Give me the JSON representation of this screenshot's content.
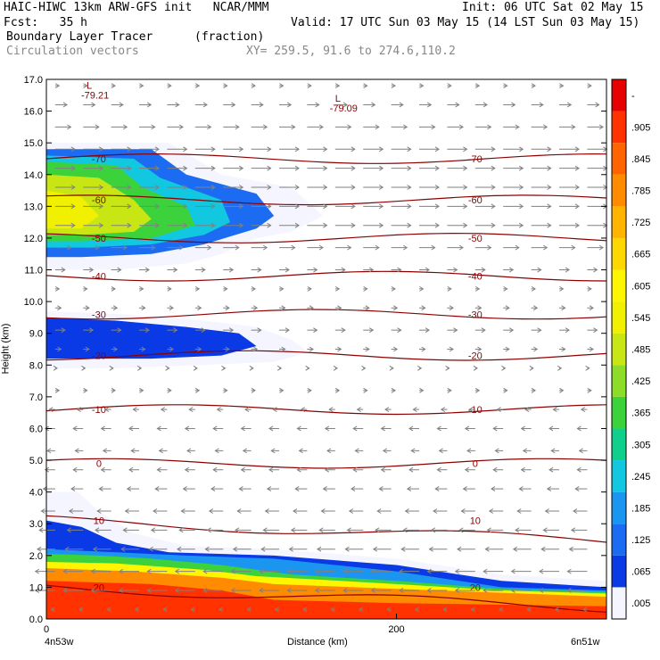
{
  "header": {
    "line1_left": "HAIC-HIWC 13km ARW-GFS init   NCAR/MMM",
    "line1_right": "Init: 06 UTC Sat 02 May 15",
    "line2_left": "Fcst:   35 h",
    "line2_right": "Valid: 17 UTC Sun 03 May 15 (14 LST Sun 03 May 15)",
    "line3_field": "Boundary Layer Tracer",
    "line3_units": "(fraction)",
    "line4_field": "Circulation vectors",
    "line4_xy": "XY= 259.5, 91.6 to 274.6,110.2"
  },
  "chart_data": {
    "type": "heatmap",
    "title": "Boundary Layer Tracer",
    "units": "(fraction)",
    "ylabel": "Height (km)",
    "xlabel": "Distance (km)",
    "xlim": [
      0,
      320
    ],
    "ylim": [
      0,
      17
    ],
    "x_ticks": [
      "0",
      "200"
    ],
    "x_end_labels": [
      "4n53w",
      "6n51w"
    ],
    "y_ticks": [
      "0.0",
      "1.0",
      "2.0",
      "3.0",
      "4.0",
      "5.0",
      "6.0",
      "7.0",
      "8.0",
      "9.0",
      "10.0",
      "11.0",
      "12.0",
      "13.0",
      "14.0",
      "15.0",
      "16.0",
      "17.0"
    ],
    "colorbar": {
      "labels": [
        ".005",
        ".065",
        ".125",
        ".185",
        ".245",
        ".305",
        ".365",
        ".425",
        ".485",
        ".545",
        ".605",
        ".665",
        ".725",
        ".785",
        ".845",
        ".905",
        "-"
      ],
      "colors": [
        "#f5f5ff",
        "#0a39e6",
        "#1b6cf2",
        "#1a96f0",
        "#12c7e0",
        "#0ed08c",
        "#3cd23c",
        "#8cdc28",
        "#c8e614",
        "#f0f000",
        "#fff500",
        "#ffd700",
        "#ffb400",
        "#ff8c00",
        "#ff6400",
        "#ff3200",
        "#e60000"
      ]
    },
    "temperature_contours": {
      "color": "#8b0000",
      "levels": [
        {
          "label": "-70",
          "y": 14.5
        },
        {
          "label": "-60",
          "y": 13.2
        },
        {
          "label": "-50",
          "y": 12.0
        },
        {
          "label": "-40",
          "y": 10.8
        },
        {
          "label": "-30",
          "y": 9.6
        },
        {
          "label": "-20",
          "y": 8.3
        },
        {
          "label": "-10",
          "y": 6.6
        },
        {
          "label": "0",
          "y": 4.9
        },
        {
          "label": "10",
          "y": 3.1
        },
        {
          "label": "20",
          "y": 1.0
        }
      ]
    },
    "low_labels": [
      {
        "marker": "L",
        "value": "-79.21",
        "x": 26,
        "y": 16.7
      },
      {
        "marker": "L",
        "value": "-79.09",
        "x": 168,
        "y": 16.3
      }
    ],
    "tracer_regions": [
      {
        "name": "upper layer",
        "levels": [
          {
            "value": 0.005,
            "pts": [
              [
                0,
                15.0
              ],
              [
                70,
                15.0
              ],
              [
                100,
                14.0
              ],
              [
                140,
                13.6
              ],
              [
                158,
                12.7
              ],
              [
                140,
                12.2
              ],
              [
                120,
                12.0
              ],
              [
                100,
                11.5
              ],
              [
                80,
                11.2
              ],
              [
                40,
                11.0
              ],
              [
                0,
                11.0
              ]
            ]
          },
          {
            "value": 0.125,
            "pts": [
              [
                0,
                14.8
              ],
              [
                60,
                14.8
              ],
              [
                80,
                14.0
              ],
              [
                120,
                13.4
              ],
              [
                130,
                12.7
              ],
              [
                120,
                12.3
              ],
              [
                90,
                11.8
              ],
              [
                60,
                11.5
              ],
              [
                20,
                11.4
              ],
              [
                0,
                11.4
              ]
            ]
          },
          {
            "value": 0.245,
            "pts": [
              [
                0,
                14.6
              ],
              [
                50,
                14.5
              ],
              [
                65,
                13.9
              ],
              [
                100,
                13.2
              ],
              [
                105,
                12.5
              ],
              [
                90,
                12.1
              ],
              [
                60,
                11.8
              ],
              [
                20,
                11.7
              ],
              [
                0,
                11.7
              ]
            ]
          },
          {
            "value": 0.365,
            "pts": [
              [
                0,
                14.4
              ],
              [
                40,
                14.3
              ],
              [
                55,
                13.6
              ],
              [
                80,
                13.0
              ],
              [
                85,
                12.4
              ],
              [
                60,
                12.0
              ],
              [
                20,
                11.9
              ],
              [
                0,
                11.9
              ]
            ]
          },
          {
            "value": 0.485,
            "pts": [
              [
                0,
                14.0
              ],
              [
                30,
                13.9
              ],
              [
                50,
                13.2
              ],
              [
                60,
                12.6
              ],
              [
                50,
                12.2
              ],
              [
                20,
                12.1
              ],
              [
                0,
                12.1
              ]
            ]
          },
          {
            "value": 0.545,
            "pts": [
              [
                0,
                13.5
              ],
              [
                20,
                13.3
              ],
              [
                30,
                12.7
              ],
              [
                20,
                12.3
              ],
              [
                0,
                12.3
              ]
            ]
          }
        ]
      },
      {
        "name": "middle layer",
        "levels": [
          {
            "value": 0.005,
            "pts": [
              [
                0,
                9.7
              ],
              [
                45,
                9.6
              ],
              [
                90,
                9.4
              ],
              [
                120,
                9.2
              ],
              [
                140,
                8.8
              ],
              [
                150,
                8.4
              ],
              [
                130,
                8.1
              ],
              [
                90,
                8.0
              ],
              [
                40,
                7.9
              ],
              [
                0,
                7.9
              ]
            ]
          },
          {
            "value": 0.065,
            "pts": [
              [
                0,
                9.5
              ],
              [
                40,
                9.4
              ],
              [
                80,
                9.2
              ],
              [
                110,
                9.0
              ],
              [
                120,
                8.6
              ],
              [
                100,
                8.3
              ],
              [
                60,
                8.2
              ],
              [
                0,
                8.2
              ]
            ]
          }
        ]
      },
      {
        "name": "boundary layer",
        "levels": [
          {
            "value": 0.005,
            "pts": [
              [
                0,
                0
              ],
              [
                0,
                4.0
              ],
              [
                18,
                4.0
              ],
              [
                30,
                3.4
              ],
              [
                50,
                2.7
              ],
              [
                80,
                2.3
              ],
              [
                130,
                2.2
              ],
              [
                200,
                1.9
              ],
              [
                260,
                1.4
              ],
              [
                320,
                1.2
              ],
              [
                320,
                0
              ]
            ]
          },
          {
            "value": 0.065,
            "pts": [
              [
                0,
                0
              ],
              [
                0,
                3.1
              ],
              [
                20,
                2.9
              ],
              [
                40,
                2.4
              ],
              [
                70,
                2.1
              ],
              [
                130,
                2.0
              ],
              [
                200,
                1.7
              ],
              [
                260,
                1.2
              ],
              [
                320,
                1.0
              ],
              [
                320,
                0
              ]
            ]
          },
          {
            "value": 0.185,
            "pts": [
              [
                0,
                0
              ],
              [
                0,
                2.2
              ],
              [
                40,
                2.1
              ],
              [
                80,
                2.0
              ],
              [
                130,
                1.9
              ],
              [
                200,
                1.5
              ],
              [
                260,
                1.0
              ],
              [
                320,
                0.9
              ],
              [
                320,
                0
              ]
            ]
          },
          {
            "value": 0.365,
            "pts": [
              [
                0,
                0
              ],
              [
                0,
                2.05
              ],
              [
                30,
                2.0
              ],
              [
                60,
                1.9
              ],
              [
                100,
                1.7
              ],
              [
                140,
                1.4
              ],
              [
                200,
                1.2
              ],
              [
                260,
                0.95
              ],
              [
                320,
                0.85
              ],
              [
                320,
                0
              ]
            ]
          },
          {
            "value": 0.605,
            "pts": [
              [
                0,
                0
              ],
              [
                0,
                1.8
              ],
              [
                40,
                1.75
              ],
              [
                90,
                1.55
              ],
              [
                120,
                1.35
              ],
              [
                200,
                1.1
              ],
              [
                260,
                0.9
              ],
              [
                320,
                0.8
              ],
              [
                320,
                0
              ]
            ]
          },
          {
            "value": 0.785,
            "pts": [
              [
                0,
                0
              ],
              [
                0,
                1.6
              ],
              [
                50,
                1.5
              ],
              [
                100,
                1.3
              ],
              [
                130,
                1.1
              ],
              [
                200,
                0.95
              ],
              [
                320,
                0.7
              ],
              [
                320,
                0
              ]
            ]
          },
          {
            "value": 0.905,
            "pts": [
              [
                0,
                0
              ],
              [
                0,
                1.2
              ],
              [
                60,
                1.1
              ],
              [
                100,
                0.9
              ],
              [
                130,
                0.6
              ],
              [
                200,
                0.5
              ],
              [
                320,
                0.4
              ],
              [
                320,
                0
              ]
            ]
          }
        ]
      }
    ],
    "vector_rows": [
      {
        "y": 16.8,
        "u": 0.2
      },
      {
        "y": 16.2,
        "u": 0.6
      },
      {
        "y": 15.5,
        "u": 0.8
      },
      {
        "y": 14.8,
        "u": 1.0
      },
      {
        "y": 14.2,
        "u": 1.0
      },
      {
        "y": 13.6,
        "u": 1.0
      },
      {
        "y": 13.0,
        "u": 1.0
      },
      {
        "y": 12.4,
        "u": 1.0
      },
      {
        "y": 11.7,
        "u": 0.8
      },
      {
        "y": 11.0,
        "u": 0.5
      },
      {
        "y": 10.4,
        "u": 0.2
      },
      {
        "y": 9.8,
        "u": 0.3
      },
      {
        "y": 9.1,
        "u": 0.5
      },
      {
        "y": 8.5,
        "u": 0.3
      },
      {
        "y": 7.9,
        "u": 0.1
      },
      {
        "y": 7.2,
        "u": 0.2
      },
      {
        "y": 6.6,
        "u": -0.3
      },
      {
        "y": 6.0,
        "u": -0.5
      },
      {
        "y": 5.3,
        "u": -0.4
      },
      {
        "y": 4.7,
        "u": -0.5
      },
      {
        "y": 4.1,
        "u": -0.6
      },
      {
        "y": 3.4,
        "u": -0.7
      },
      {
        "y": 2.8,
        "u": -0.8
      },
      {
        "y": 2.2,
        "u": -0.9
      },
      {
        "y": 1.5,
        "u": -1.0
      },
      {
        "y": 0.9,
        "u": -1.0
      },
      {
        "y": 0.3,
        "u": -0.2
      }
    ]
  }
}
